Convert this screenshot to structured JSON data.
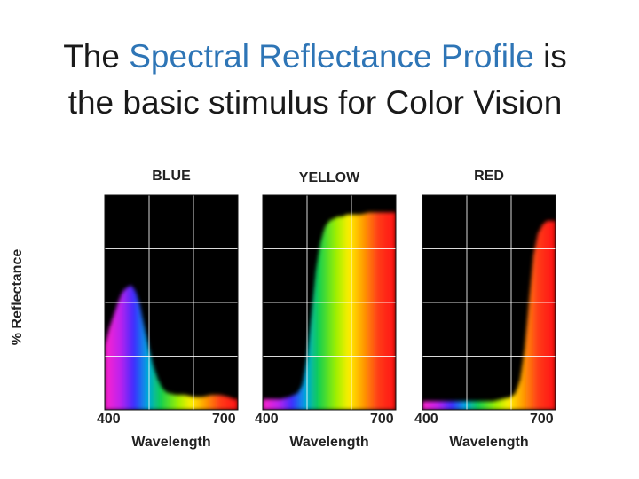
{
  "title": {
    "part1": "The ",
    "highlight": "Spectral Reflectance Profile",
    "part2": " is",
    "line2": "the basic stimulus for Color Vision",
    "highlight_color": "#2e75b6"
  },
  "chart_data": {
    "type": "area",
    "ylabel": "% Reflectance",
    "xlabel": "Wavelength",
    "xlim": [
      400,
      700
    ],
    "x_ticks": [
      "400",
      "700"
    ],
    "grid": true,
    "panels": [
      {
        "name": "BLUE",
        "x": [
          400,
          410,
          420,
          430,
          440,
          450,
          460,
          470,
          480,
          490,
          500,
          510,
          520,
          530,
          540,
          560,
          580,
          600,
          620,
          640,
          660,
          680,
          690,
          700
        ],
        "y": [
          30,
          38,
          44,
          50,
          55,
          57,
          58,
          55,
          48,
          38,
          28,
          20,
          14,
          10,
          8,
          7,
          7,
          6,
          6,
          7,
          7,
          6,
          5,
          5
        ]
      },
      {
        "name": "YELLOW",
        "x": [
          400,
          420,
          440,
          460,
          480,
          490,
          500,
          510,
          520,
          530,
          540,
          550,
          560,
          570,
          580,
          590,
          600,
          620,
          640,
          660,
          680,
          700
        ],
        "y": [
          5,
          5,
          5,
          6,
          8,
          12,
          25,
          45,
          65,
          78,
          85,
          88,
          89,
          90,
          90,
          91,
          91,
          91,
          92,
          92,
          92,
          92
        ]
      },
      {
        "name": "RED",
        "x": [
          400,
          440,
          480,
          520,
          560,
          580,
          600,
          610,
          620,
          630,
          640,
          650,
          660,
          670,
          680,
          690,
          700
        ],
        "y": [
          4,
          4,
          4,
          4,
          4,
          5,
          6,
          8,
          14,
          28,
          50,
          72,
          82,
          86,
          88,
          88,
          88
        ]
      }
    ]
  }
}
